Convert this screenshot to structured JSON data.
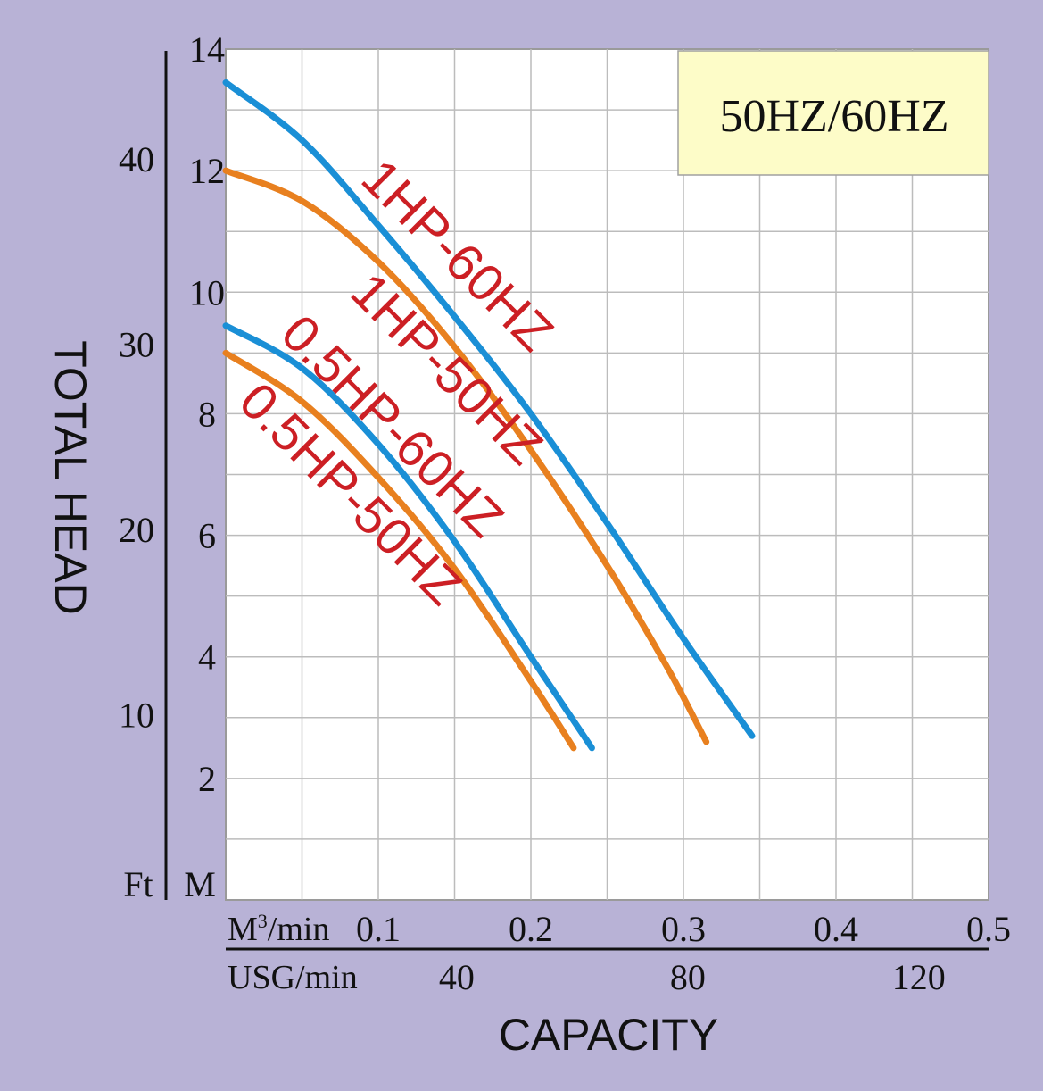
{
  "chart_data": {
    "type": "line",
    "legend_box": "50HZ/60HZ",
    "ylabel": "TOTAL HEAD",
    "xlabel": "CAPACITY",
    "y_unit_m": "M",
    "y_unit_ft": "Ft",
    "x_unit_m3": "M",
    "x_unit_m3_sup": "3",
    "x_unit_m3_rest": "/min",
    "x_unit_usg": "USG/min",
    "xlim": [
      0,
      0.5
    ],
    "ylim": [
      0,
      14
    ],
    "grid": true,
    "y_ticks_m": [
      "2",
      "4",
      "6",
      "8",
      "10",
      "12",
      "14"
    ],
    "y_ticks_ft": [
      "10",
      "20",
      "30",
      "40"
    ],
    "x_ticks_m3": [
      "0.1",
      "0.2",
      "0.3",
      "0.4",
      "0.5"
    ],
    "x_ticks_usg": [
      "40",
      "80",
      "120"
    ],
    "colors": {
      "hz60": "#1a8fd6",
      "hz50": "#e8801f",
      "label": "#cc1f24",
      "legend_bg": "#fdfcc8"
    },
    "series": [
      {
        "name": "1HP-60HZ",
        "color": "#1a8fd6",
        "x": [
          0.0,
          0.05,
          0.1,
          0.15,
          0.2,
          0.25,
          0.3,
          0.345
        ],
        "y": [
          13.45,
          12.5,
          11.1,
          9.6,
          8.0,
          6.2,
          4.3,
          2.7
        ]
      },
      {
        "name": "1HP-50HZ",
        "color": "#e8801f",
        "x": [
          0.0,
          0.05,
          0.1,
          0.15,
          0.2,
          0.25,
          0.29,
          0.315
        ],
        "y": [
          12.0,
          11.5,
          10.5,
          9.1,
          7.4,
          5.5,
          3.8,
          2.6
        ]
      },
      {
        "name": "0.5HP-60HZ",
        "color": "#1a8fd6",
        "x": [
          0.0,
          0.05,
          0.1,
          0.15,
          0.2,
          0.24
        ],
        "y": [
          9.45,
          8.75,
          7.5,
          5.9,
          4.0,
          2.5
        ]
      },
      {
        "name": "0.5HP-50HZ",
        "color": "#e8801f",
        "x": [
          0.0,
          0.05,
          0.1,
          0.15,
          0.2,
          0.228
        ],
        "y": [
          9.0,
          8.2,
          6.95,
          5.45,
          3.6,
          2.5
        ]
      }
    ]
  }
}
